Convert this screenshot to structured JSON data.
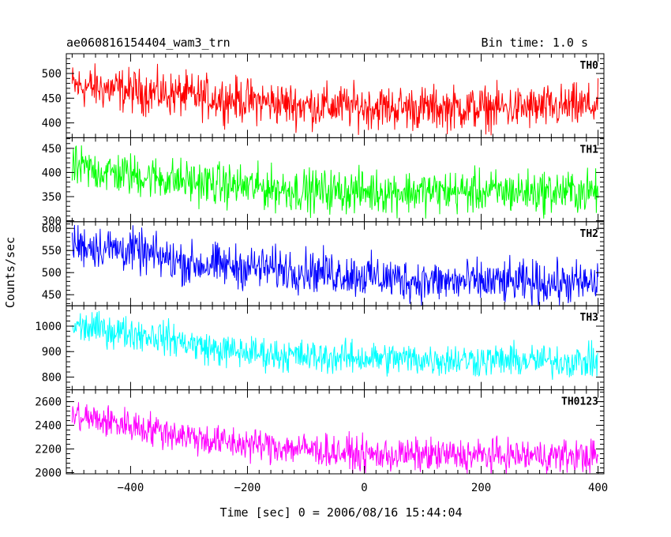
{
  "chart_data": {
    "type": "line",
    "title": "ae060816154404_wam3_trn",
    "subtitle": "Bin time: 1.0 s",
    "xlabel": "Time [sec] 0 = 2006/08/16 15:44:04",
    "ylabel": "Counts/sec",
    "xlim": [
      -510,
      410
    ],
    "x_ticks": [
      -400,
      -200,
      0,
      200,
      400
    ],
    "grid": false,
    "x_start": -500,
    "x_end": 400,
    "x_step": 1,
    "panels": [
      {
        "name": "TH0",
        "color": "#ff0000",
        "ylim": [
          370,
          540
        ],
        "yticks": [
          400,
          450,
          500
        ],
        "level_time": [
          -500,
          -300,
          -100,
          100,
          300,
          400
        ],
        "level_value": [
          475,
          455,
          435,
          430,
          430,
          435
        ],
        "noise_amplitude": 22
      },
      {
        "name": "TH1",
        "color": "#00ff00",
        "ylim": [
          298,
          472
        ],
        "yticks": [
          300,
          350,
          400,
          450
        ],
        "level_time": [
          -500,
          -400,
          -250,
          -100,
          100,
          400
        ],
        "level_value": [
          410,
          395,
          375,
          362,
          360,
          360
        ],
        "noise_amplitude": 22
      },
      {
        "name": "TH2",
        "color": "#0000ff",
        "ylim": [
          425,
          615
        ],
        "yticks": [
          450,
          500,
          550,
          600
        ],
        "level_time": [
          -500,
          -400,
          -300,
          -100,
          100,
          400
        ],
        "level_value": [
          565,
          550,
          520,
          505,
          480,
          475
        ],
        "noise_amplitude": 24
      },
      {
        "name": "TH3",
        "color": "#00ffff",
        "ylim": [
          750,
          1080
        ],
        "yticks": [
          800,
          900,
          1000
        ],
        "level_time": [
          -500,
          -350,
          -250,
          -100,
          100,
          400
        ],
        "level_value": [
          1000,
          960,
          905,
          880,
          870,
          860
        ],
        "noise_amplitude": 32
      },
      {
        "name": "TH0123",
        "color": "#ff00ff",
        "ylim": [
          1990,
          2700
        ],
        "yticks": [
          2000,
          2200,
          2400,
          2600
        ],
        "level_time": [
          -500,
          -400,
          -250,
          -100,
          0,
          400
        ],
        "level_value": [
          2480,
          2400,
          2260,
          2200,
          2150,
          2140
        ],
        "noise_amplitude": 70
      }
    ]
  }
}
